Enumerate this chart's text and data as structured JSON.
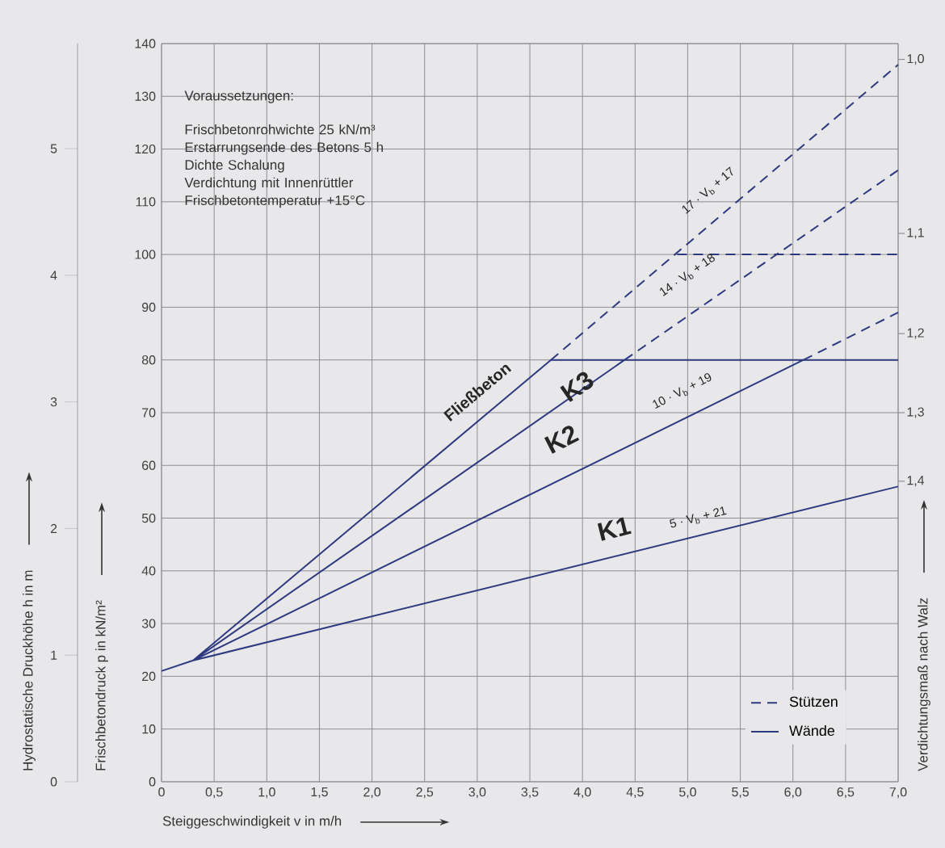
{
  "chart_data": {
    "type": "line",
    "xlabel": "Steiggeschwindigkeit v in m/h",
    "ylabel": "Frischbetondruck p in kN/m²",
    "y2label": "Verdichtungsmaß nach Walz",
    "y3label": "Hydrostatische Druckhöhe h in m",
    "xlim": [
      0,
      7.0
    ],
    "xticks": [
      0,
      {
        "value": 0.5,
        "label": "0,5"
      },
      {
        "value": 1.0,
        "label": "1,0"
      },
      {
        "value": 1.5,
        "label": "1,5"
      },
      {
        "value": 2.0,
        "label": "2,0"
      },
      {
        "value": 2.5,
        "label": "2,5"
      },
      {
        "value": 3.0,
        "label": "3,0"
      },
      {
        "value": 3.5,
        "label": "3,5"
      },
      {
        "value": 4.0,
        "label": "4,0"
      },
      {
        "value": 4.5,
        "label": "4,5"
      },
      {
        "value": 5.0,
        "label": "5,0"
      },
      {
        "value": 5.5,
        "label": "5,5"
      },
      {
        "value": 6.0,
        "label": "6,0"
      },
      {
        "value": 6.5,
        "label": "6,5"
      },
      {
        "value": 7.0,
        "label": "7,0"
      }
    ],
    "ylim": [
      0,
      140
    ],
    "yticks": [
      0,
      10,
      20,
      30,
      40,
      50,
      60,
      70,
      80,
      90,
      100,
      110,
      120,
      130,
      140
    ],
    "y3lim": [
      0,
      5.83
    ],
    "y3ticks": [
      0,
      1,
      2,
      3,
      4,
      5
    ],
    "grid": true,
    "legend": "bottom right",
    "marker": "none",
    "series": [
      {
        "name": "Stützen",
        "color": "#2e3a80",
        "line_style": "dashed",
        "x": [
          3.7,
          7.0,
          null,
          4.4,
          7.0,
          null,
          6.1,
          7.0,
          null,
          4.9,
          7.0
        ],
        "values": [
          80,
          136,
          null,
          80,
          116,
          null,
          80,
          89,
          null,
          100,
          100
        ]
      },
      {
        "name": "Wände",
        "color": "#2e3a80",
        "line_style": "solid",
        "x": [
          0,
          0.3,
          7.0,
          null,
          0.3,
          3.7,
          7.0,
          null,
          0.3,
          4.4,
          null,
          0.3,
          6.1
        ],
        "values": [
          21,
          23,
          56,
          null,
          23,
          80,
          80,
          null,
          23,
          80,
          null,
          23,
          80
        ]
      }
    ],
    "annotations": [
      "Voraussetzungen:",
      "Frischbetonrohwichte 25 kN/m³",
      "Erstarrungsende des Betons 5 h",
      "Dichte Schalung",
      "Verdichtung mit Innenrüttler",
      "Frischbetontemperatur +15°C",
      "Fließbeton",
      "K3",
      "K2",
      "K1",
      "17 · V$_{b}$ + 17",
      "14 · V$_{b}$ + 18",
      "10 · V$_{b}$ + 19",
      "5 · V$_{b}$ + 21",
      "1,0",
      "1,1",
      "1,2",
      "1,3",
      "1,4"
    ]
  }
}
